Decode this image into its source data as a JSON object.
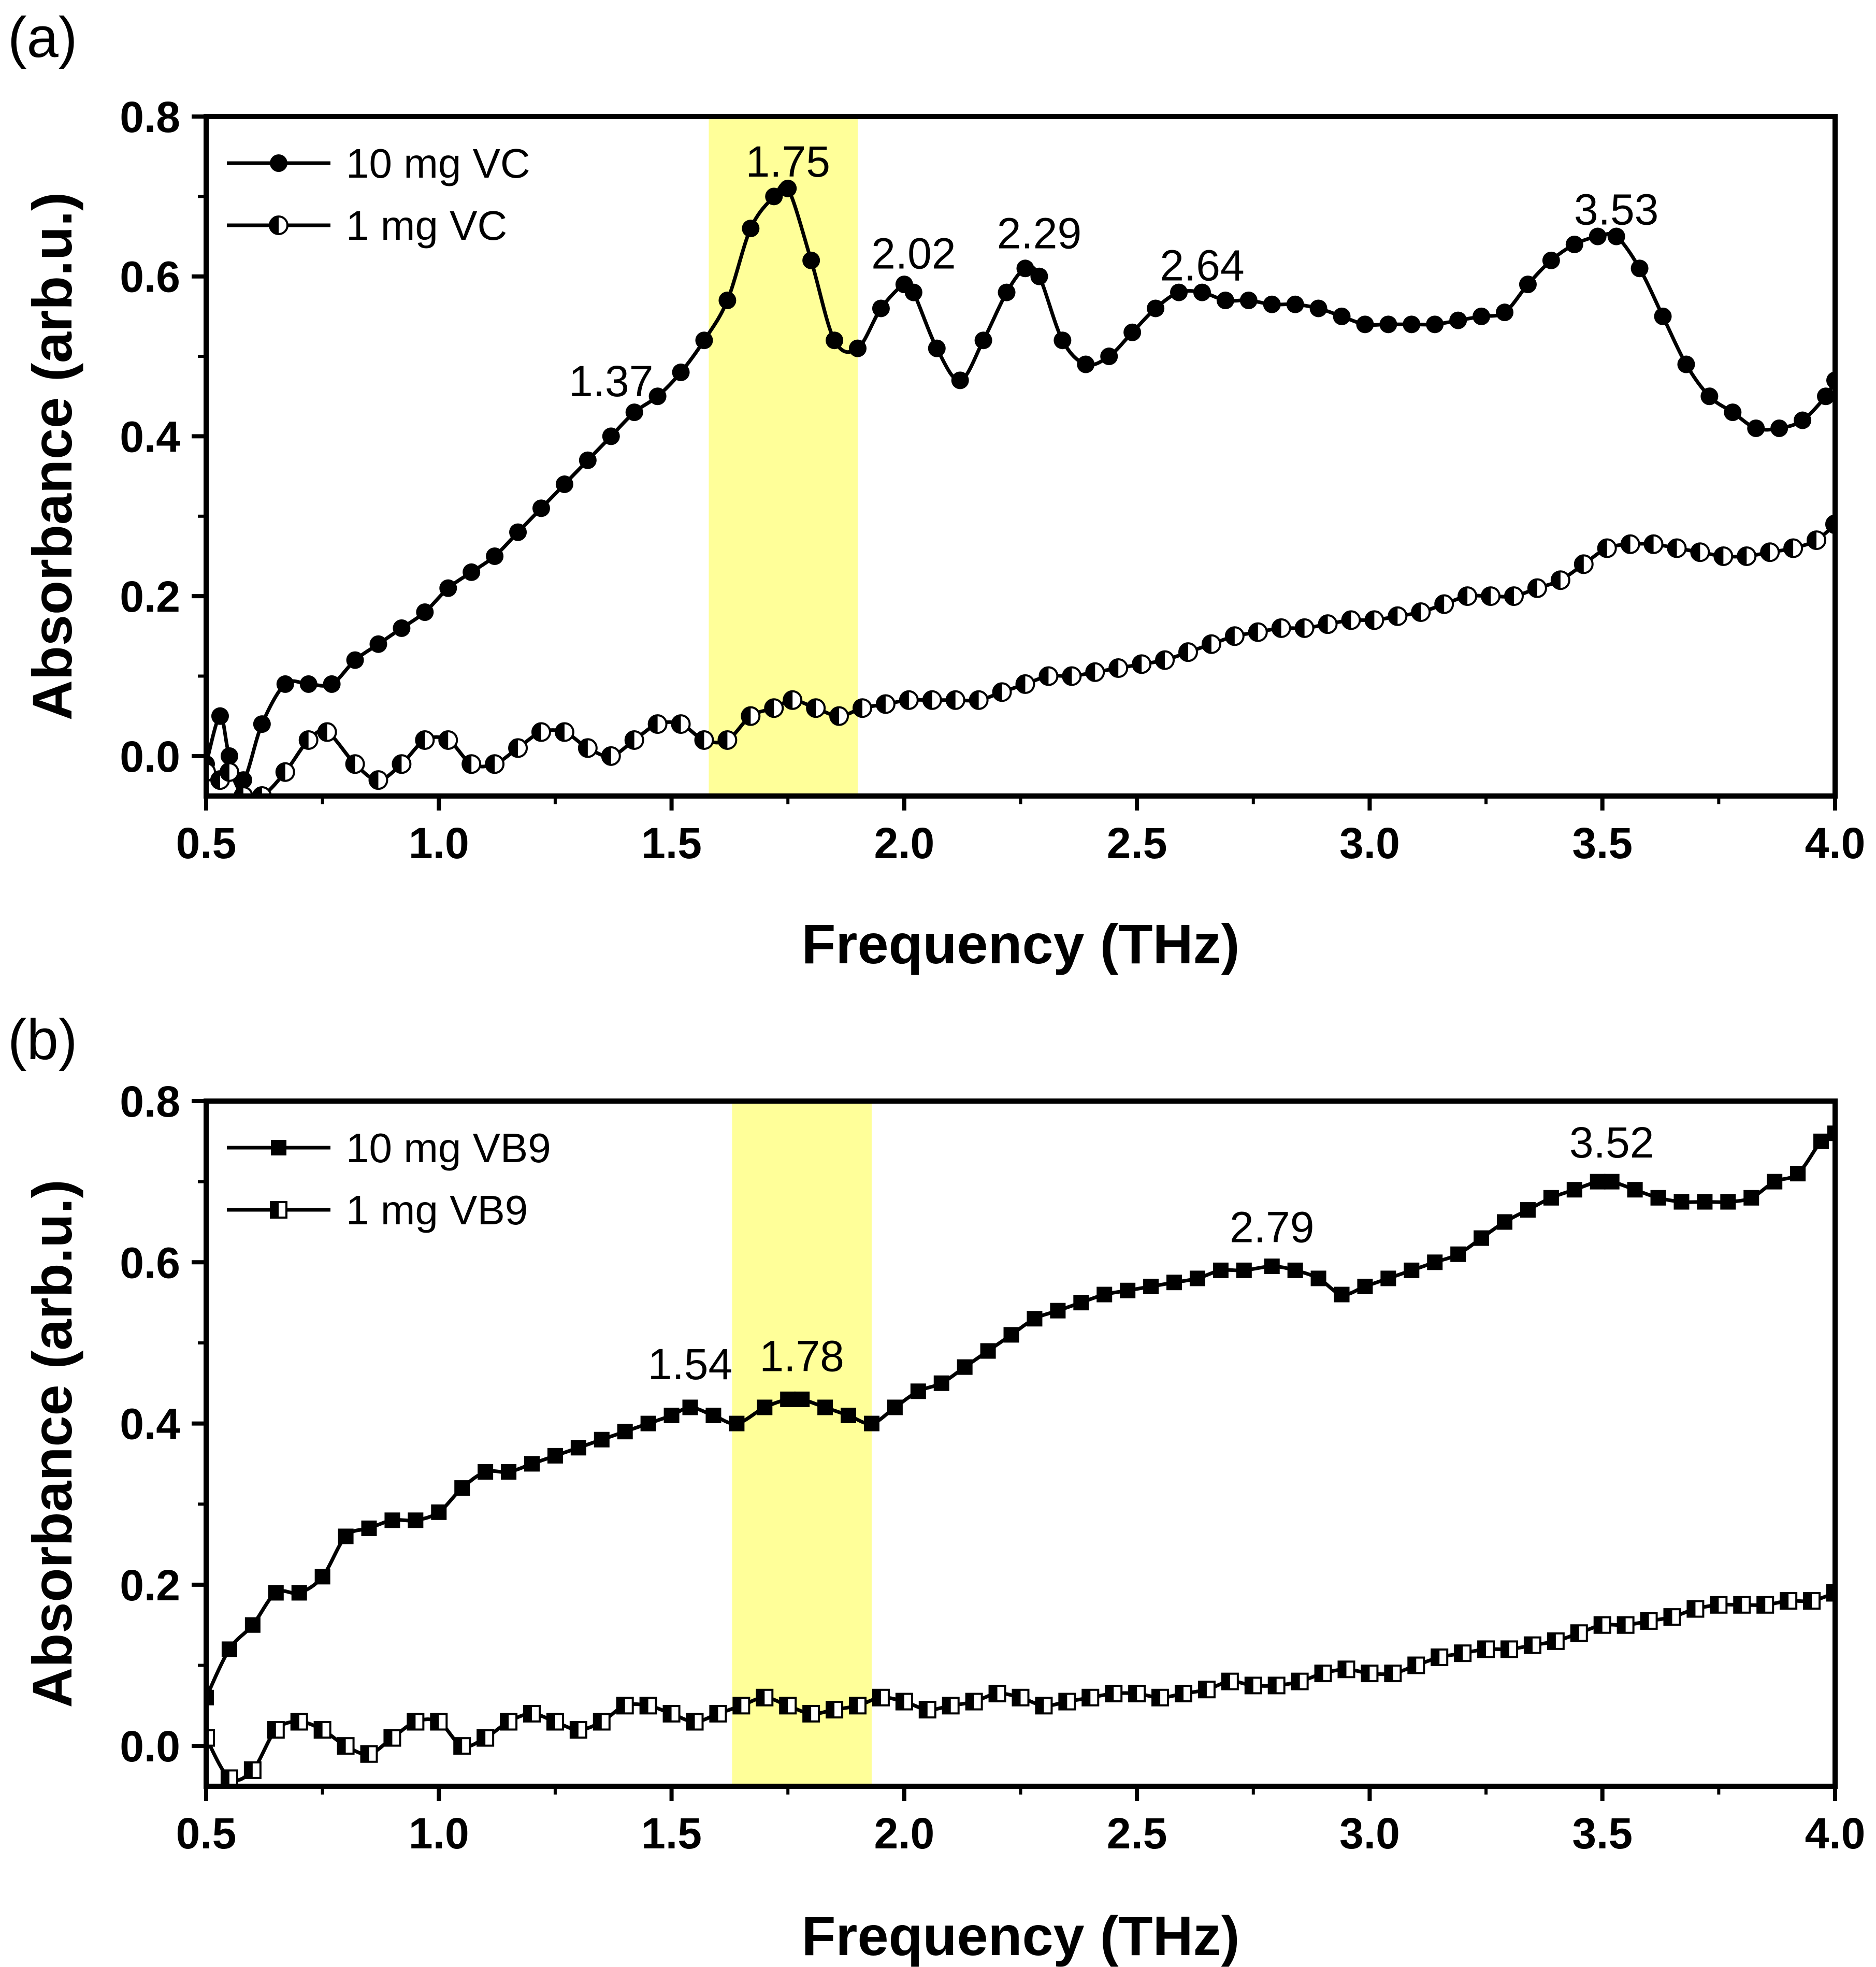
{
  "chart_data": [
    {
      "panel": "(a)",
      "type": "line",
      "xlabel": "Frequency (THz)",
      "ylabel": "Absorbance (arb.u.)",
      "xlim": [
        0.5,
        4.0
      ],
      "ylim": [
        -0.05,
        0.8
      ],
      "xticks": [
        0.5,
        1.0,
        1.5,
        2.0,
        2.5,
        3.0,
        3.5,
        4.0
      ],
      "yticks": [
        0.0,
        0.2,
        0.4,
        0.6,
        0.8
      ],
      "xtick_labels": [
        "0.5",
        "1.0",
        "1.5",
        "2.0",
        "2.5",
        "3.0",
        "3.5",
        "4.0"
      ],
      "ytick_labels": [
        "0.0",
        "0.2",
        "0.4",
        "0.6",
        "0.8"
      ],
      "highlight": [
        1.58,
        1.9
      ],
      "highlight_color": "#ffff99",
      "legend_position": "top-left",
      "series": [
        {
          "name": "10 mg VC",
          "marker": "filled-circle",
          "x": [
            0.5,
            0.53,
            0.55,
            0.58,
            0.62,
            0.67,
            0.72,
            0.77,
            0.82,
            0.87,
            0.92,
            0.97,
            1.02,
            1.07,
            1.12,
            1.17,
            1.22,
            1.27,
            1.32,
            1.37,
            1.42,
            1.47,
            1.52,
            1.57,
            1.62,
            1.67,
            1.72,
            1.75,
            1.8,
            1.85,
            1.9,
            1.95,
            2.0,
            2.02,
            2.07,
            2.12,
            2.17,
            2.22,
            2.26,
            2.29,
            2.34,
            2.39,
            2.44,
            2.49,
            2.54,
            2.59,
            2.64,
            2.69,
            2.74,
            2.79,
            2.84,
            2.89,
            2.94,
            2.99,
            3.04,
            3.09,
            3.14,
            3.19,
            3.24,
            3.29,
            3.34,
            3.39,
            3.44,
            3.49,
            3.53,
            3.58,
            3.63,
            3.68,
            3.73,
            3.78,
            3.83,
            3.88,
            3.93,
            3.98,
            4.0
          ],
          "y": [
            -0.01,
            0.05,
            0.0,
            -0.03,
            0.04,
            0.09,
            0.09,
            0.09,
            0.12,
            0.14,
            0.16,
            0.18,
            0.21,
            0.23,
            0.25,
            0.28,
            0.31,
            0.34,
            0.37,
            0.4,
            0.43,
            0.45,
            0.48,
            0.52,
            0.57,
            0.66,
            0.7,
            0.71,
            0.62,
            0.52,
            0.51,
            0.56,
            0.59,
            0.58,
            0.51,
            0.47,
            0.52,
            0.58,
            0.61,
            0.6,
            0.52,
            0.49,
            0.5,
            0.53,
            0.56,
            0.58,
            0.58,
            0.57,
            0.57,
            0.565,
            0.565,
            0.56,
            0.55,
            0.54,
            0.54,
            0.54,
            0.54,
            0.545,
            0.55,
            0.555,
            0.59,
            0.62,
            0.64,
            0.65,
            0.65,
            0.61,
            0.55,
            0.49,
            0.45,
            0.43,
            0.41,
            0.41,
            0.42,
            0.45,
            0.47
          ]
        },
        {
          "name": "1 mg VC",
          "marker": "half-circle",
          "x": [
            0.5,
            0.53,
            0.55,
            0.58,
            0.62,
            0.67,
            0.72,
            0.76,
            0.82,
            0.87,
            0.92,
            0.97,
            1.02,
            1.07,
            1.12,
            1.17,
            1.22,
            1.27,
            1.32,
            1.37,
            1.42,
            1.47,
            1.52,
            1.57,
            1.62,
            1.67,
            1.72,
            1.76,
            1.81,
            1.86,
            1.91,
            1.96,
            2.01,
            2.06,
            2.11,
            2.16,
            2.21,
            2.26,
            2.31,
            2.36,
            2.41,
            2.46,
            2.51,
            2.56,
            2.61,
            2.66,
            2.71,
            2.76,
            2.81,
            2.86,
            2.91,
            2.96,
            3.01,
            3.06,
            3.11,
            3.16,
            3.21,
            3.26,
            3.31,
            3.36,
            3.41,
            3.46,
            3.51,
            3.56,
            3.61,
            3.66,
            3.71,
            3.76,
            3.81,
            3.86,
            3.91,
            3.96,
            4.0
          ],
          "y": [
            -0.02,
            -0.03,
            -0.02,
            -0.05,
            -0.05,
            -0.02,
            0.02,
            0.03,
            -0.01,
            -0.03,
            -0.01,
            0.02,
            0.02,
            -0.01,
            -0.01,
            0.01,
            0.03,
            0.03,
            0.01,
            0.0,
            0.02,
            0.04,
            0.04,
            0.02,
            0.02,
            0.05,
            0.06,
            0.07,
            0.06,
            0.05,
            0.06,
            0.065,
            0.07,
            0.07,
            0.07,
            0.07,
            0.08,
            0.09,
            0.1,
            0.1,
            0.105,
            0.11,
            0.115,
            0.12,
            0.13,
            0.14,
            0.15,
            0.155,
            0.16,
            0.16,
            0.165,
            0.17,
            0.17,
            0.175,
            0.18,
            0.19,
            0.2,
            0.2,
            0.2,
            0.21,
            0.22,
            0.24,
            0.26,
            0.265,
            0.265,
            0.26,
            0.255,
            0.25,
            0.25,
            0.255,
            0.26,
            0.27,
            0.29
          ]
        }
      ],
      "annotations": [
        {
          "text": "1.37",
          "x": 1.37,
          "y": 0.45
        },
        {
          "text": "1.75",
          "x": 1.75,
          "y": 0.725
        },
        {
          "text": "2.02",
          "x": 2.02,
          "y": 0.61
        },
        {
          "text": "2.29",
          "x": 2.29,
          "y": 0.635
        },
        {
          "text": "2.64",
          "x": 2.64,
          "y": 0.595
        },
        {
          "text": "3.53",
          "x": 3.53,
          "y": 0.665
        }
      ]
    },
    {
      "panel": "(b)",
      "type": "line",
      "xlabel": "Frequency (THz)",
      "ylabel": "Absorbance (arb.u.)",
      "xlim": [
        0.5,
        4.0
      ],
      "ylim": [
        -0.05,
        0.8
      ],
      "xticks": [
        0.5,
        1.0,
        1.5,
        2.0,
        2.5,
        3.0,
        3.5,
        4.0
      ],
      "yticks": [
        0.0,
        0.2,
        0.4,
        0.6,
        0.8
      ],
      "xtick_labels": [
        "0.5",
        "1.0",
        "1.5",
        "2.0",
        "2.5",
        "3.0",
        "3.5",
        "4.0"
      ],
      "ytick_labels": [
        "0.0",
        "0.2",
        "0.4",
        "0.6",
        "0.8"
      ],
      "highlight": [
        1.63,
        1.93
      ],
      "highlight_color": "#ffff99",
      "legend_position": "top-left",
      "series": [
        {
          "name": "10 mg VB9",
          "marker": "filled-square",
          "x": [
            0.5,
            0.55,
            0.6,
            0.65,
            0.7,
            0.75,
            0.8,
            0.85,
            0.9,
            0.95,
            1.0,
            1.05,
            1.1,
            1.15,
            1.2,
            1.25,
            1.3,
            1.35,
            1.4,
            1.45,
            1.5,
            1.54,
            1.59,
            1.64,
            1.7,
            1.75,
            1.78,
            1.83,
            1.88,
            1.93,
            1.98,
            2.03,
            2.08,
            2.13,
            2.18,
            2.23,
            2.28,
            2.33,
            2.38,
            2.43,
            2.48,
            2.53,
            2.58,
            2.63,
            2.68,
            2.73,
            2.79,
            2.84,
            2.89,
            2.94,
            2.99,
            3.04,
            3.09,
            3.14,
            3.19,
            3.24,
            3.29,
            3.34,
            3.39,
            3.44,
            3.49,
            3.52,
            3.57,
            3.62,
            3.67,
            3.72,
            3.77,
            3.82,
            3.87,
            3.92,
            3.97,
            4.0
          ],
          "y": [
            0.06,
            0.12,
            0.15,
            0.19,
            0.19,
            0.21,
            0.26,
            0.27,
            0.28,
            0.28,
            0.29,
            0.32,
            0.34,
            0.34,
            0.35,
            0.36,
            0.37,
            0.38,
            0.39,
            0.4,
            0.41,
            0.42,
            0.41,
            0.4,
            0.42,
            0.43,
            0.43,
            0.42,
            0.41,
            0.4,
            0.42,
            0.44,
            0.45,
            0.47,
            0.49,
            0.51,
            0.53,
            0.54,
            0.55,
            0.56,
            0.565,
            0.57,
            0.575,
            0.58,
            0.59,
            0.59,
            0.595,
            0.59,
            0.58,
            0.56,
            0.57,
            0.58,
            0.59,
            0.6,
            0.61,
            0.63,
            0.65,
            0.665,
            0.68,
            0.69,
            0.7,
            0.7,
            0.69,
            0.68,
            0.675,
            0.675,
            0.675,
            0.68,
            0.7,
            0.71,
            0.75,
            0.76
          ]
        },
        {
          "name": "1 mg VB9",
          "marker": "half-square",
          "x": [
            0.5,
            0.55,
            0.6,
            0.65,
            0.7,
            0.75,
            0.8,
            0.85,
            0.9,
            0.95,
            1.0,
            1.05,
            1.1,
            1.15,
            1.2,
            1.25,
            1.3,
            1.35,
            1.4,
            1.45,
            1.5,
            1.55,
            1.6,
            1.65,
            1.7,
            1.75,
            1.8,
            1.85,
            1.9,
            1.95,
            2.0,
            2.05,
            2.1,
            2.15,
            2.2,
            2.25,
            2.3,
            2.35,
            2.4,
            2.45,
            2.5,
            2.55,
            2.6,
            2.65,
            2.7,
            2.75,
            2.8,
            2.85,
            2.9,
            2.95,
            3.0,
            3.05,
            3.1,
            3.15,
            3.2,
            3.25,
            3.3,
            3.35,
            3.4,
            3.45,
            3.5,
            3.55,
            3.6,
            3.65,
            3.7,
            3.75,
            3.8,
            3.85,
            3.9,
            3.95,
            4.0
          ],
          "y": [
            0.01,
            -0.04,
            -0.03,
            0.02,
            0.03,
            0.02,
            0.0,
            -0.01,
            0.01,
            0.03,
            0.03,
            0.0,
            0.01,
            0.03,
            0.04,
            0.03,
            0.02,
            0.03,
            0.05,
            0.05,
            0.04,
            0.03,
            0.04,
            0.05,
            0.06,
            0.05,
            0.04,
            0.045,
            0.05,
            0.06,
            0.055,
            0.045,
            0.05,
            0.055,
            0.065,
            0.06,
            0.05,
            0.055,
            0.06,
            0.065,
            0.065,
            0.06,
            0.065,
            0.07,
            0.08,
            0.075,
            0.075,
            0.08,
            0.09,
            0.095,
            0.09,
            0.09,
            0.1,
            0.11,
            0.115,
            0.12,
            0.12,
            0.125,
            0.13,
            0.14,
            0.15,
            0.15,
            0.155,
            0.16,
            0.17,
            0.175,
            0.175,
            0.175,
            0.18,
            0.18,
            0.19
          ]
        }
      ],
      "annotations": [
        {
          "text": "1.54",
          "x": 1.54,
          "y": 0.455
        },
        {
          "text": "1.78",
          "x": 1.78,
          "y": 0.465
        },
        {
          "text": "2.79",
          "x": 2.79,
          "y": 0.625
        },
        {
          "text": "3.52",
          "x": 3.52,
          "y": 0.73
        }
      ]
    }
  ]
}
